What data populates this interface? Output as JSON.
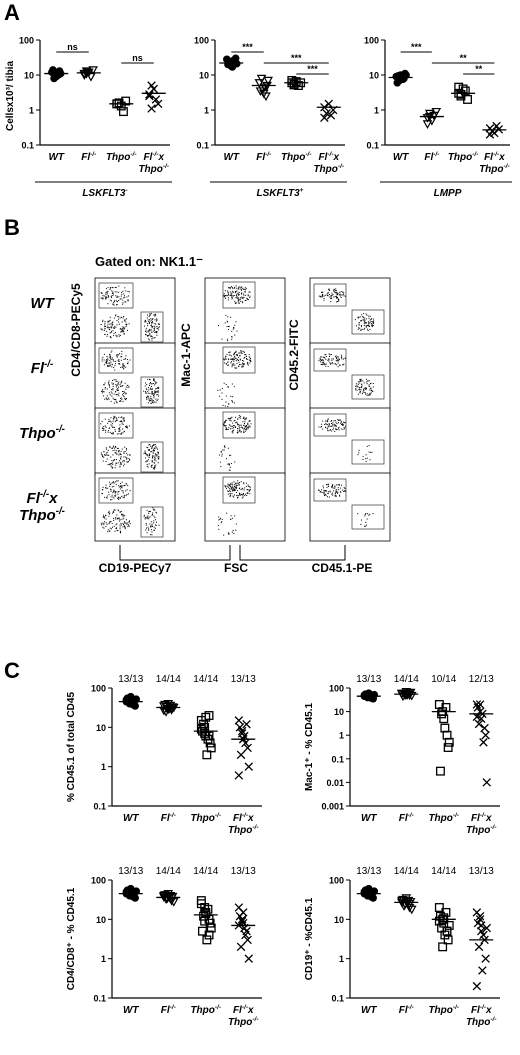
{
  "panels": {
    "A": "A",
    "B": "B",
    "C": "C"
  },
  "panel_a": {
    "ylabel": "Cellsx10³/ tibia",
    "yticks": [
      "100",
      "10",
      "1",
      "0.1"
    ],
    "charts": [
      {
        "group": "LSKFLT3⁻",
        "categories": [
          "WT",
          "Fl⁻/⁻",
          "Thpo⁻/⁻",
          "Fl⁻/⁻x Thpo⁻/⁻"
        ],
        "sig": [
          {
            "from": 0,
            "to": 1,
            "label": "ns"
          },
          {
            "from": 2,
            "to": 3,
            "label": "ns"
          }
        ]
      },
      {
        "group": "LSKFLT3⁺",
        "categories": [
          "WT",
          "Fl⁻/⁻",
          "Thpo⁻/⁻",
          "Fl⁻/⁻x Thpo⁻/⁻"
        ],
        "sig": [
          {
            "from": 0,
            "to": 1,
            "label": "***"
          },
          {
            "from": 1,
            "to": 3,
            "label": "***"
          },
          {
            "from": 2,
            "to": 3,
            "label": "***"
          }
        ]
      },
      {
        "group": "LMPP",
        "categories": [
          "WT",
          "Fl⁻/⁻",
          "Thpo⁻/⁻",
          "Fl⁻/⁻x Thpo⁻/⁻"
        ],
        "sig": [
          {
            "from": 0,
            "to": 1,
            "label": "***"
          },
          {
            "from": 1,
            "to": 3,
            "label": "**"
          },
          {
            "from": 2,
            "to": 3,
            "label": "**"
          }
        ]
      }
    ]
  },
  "panel_b": {
    "gate": "Gated on: NK1.1⁻",
    "rows": [
      "WT",
      "Fl⁻/⁻",
      "Thpo⁻/⁻",
      "Fl⁻/⁻x Thpo⁻/⁻"
    ],
    "ylabels": [
      "CD4/CD8-PECy5",
      "Mac-1-APC",
      "CD45.2-FITC"
    ],
    "xlabels": [
      "CD19-PECy7",
      "FSC",
      "CD45.1-PE"
    ]
  },
  "panel_c": {
    "categories": [
      "WT",
      "Fl⁻/⁻",
      "Thpo⁻/⁻",
      "Fl⁻/⁻x Thpo⁻/⁻"
    ],
    "charts": [
      {
        "ylabel": "% CD45.1 of total CD45",
        "yticks": [
          "100",
          "10",
          "1",
          "0.1"
        ],
        "counts": [
          "13/13",
          "14/14",
          "14/14",
          "13/13"
        ]
      },
      {
        "ylabel": "Mac-1⁺ - % CD45.1",
        "yticks": [
          "100",
          "10",
          "1",
          "0.1",
          "0.01",
          "0.001"
        ],
        "counts": [
          "13/13",
          "14/14",
          "10/14",
          "12/13"
        ]
      },
      {
        "ylabel": "CD4/CD8⁺ - % CD45.1",
        "yticks": [
          "100",
          "10",
          "1",
          "0.1"
        ],
        "counts": [
          "13/13",
          "14/14",
          "14/14",
          "13/13"
        ]
      },
      {
        "ylabel": "CD19⁺ - %CD45.1",
        "yticks": [
          "100",
          "10",
          "1",
          "0.1"
        ],
        "counts": [
          "13/13",
          "14/14",
          "14/14",
          "13/13"
        ]
      }
    ]
  },
  "chart_data": [
    {
      "type": "scatter",
      "title": "LSKFLT3⁻",
      "ylabel": "Cellsx10³/ tibia",
      "yscale": "log",
      "ylim": [
        0.1,
        100
      ],
      "categories": [
        "WT",
        "Fl⁻/⁻",
        "Thpo⁻/⁻",
        "Fl⁻/⁻x Thpo⁻/⁻"
      ],
      "markers": [
        "filled-circle",
        "open-triangle",
        "open-square",
        "x"
      ],
      "points": [
        [
          12,
          10,
          9,
          13,
          11,
          14,
          8,
          12,
          10
        ],
        [
          11,
          13,
          12,
          9,
          14,
          10,
          11,
          12
        ],
        [
          1.5,
          1.6,
          1.3,
          0.9,
          1.8,
          1.5
        ],
        [
          2.8,
          5,
          4,
          2,
          1.5,
          2.5,
          1.1
        ]
      ],
      "means": [
        11,
        11.5,
        1.5,
        3
      ]
    },
    {
      "type": "scatter",
      "title": "LSKFLT3⁺",
      "ylabel": "Cellsx10³/ tibia",
      "yscale": "log",
      "ylim": [
        0.1,
        100
      ],
      "categories": [
        "WT",
        "Fl⁻/⁻",
        "Thpo⁻/⁻",
        "Fl⁻/⁻x Thpo⁻/⁻"
      ],
      "markers": [
        "filled-circle",
        "open-triangle",
        "open-square",
        "x"
      ],
      "points": [
        [
          28,
          22,
          18,
          25,
          30,
          20,
          24,
          17,
          26,
          21
        ],
        [
          6,
          4,
          3,
          5,
          7,
          3.5,
          8,
          4.5,
          2.5
        ],
        [
          6,
          5.5,
          6.5,
          5,
          6,
          7,
          5.2
        ],
        [
          1.2,
          0.8,
          1.5,
          0.7,
          1.0,
          0.6
        ]
      ],
      "means": [
        22,
        5,
        6,
        1.2
      ]
    },
    {
      "type": "scatter",
      "title": "LMPP",
      "ylabel": "Cellsx10³/ tibia",
      "yscale": "log",
      "ylim": [
        0.1,
        100
      ],
      "categories": [
        "WT",
        "Fl⁻/⁻",
        "Thpo⁻/⁻",
        "Fl⁻/⁻x Thpo⁻/⁻"
      ],
      "markers": [
        "filled-circle",
        "open-triangle",
        "open-square",
        "x"
      ],
      "points": [
        [
          9,
          7,
          10,
          8,
          11,
          6,
          9.5,
          8.5,
          7.5,
          10
        ],
        [
          0.6,
          0.8,
          0.5,
          0.7,
          0.9,
          0.4,
          0.65
        ],
        [
          3,
          2.5,
          4,
          3.5,
          2,
          4.5,
          2.8
        ],
        [
          0.3,
          0.25,
          0.22,
          0.35,
          0.28,
          0.2
        ]
      ],
      "means": [
        8.5,
        0.65,
        3,
        0.27
      ]
    },
    {
      "type": "scatter",
      "title": "",
      "ylabel": "% CD45.1 of total CD45",
      "yscale": "log",
      "ylim": [
        0.1,
        100
      ],
      "categories": [
        "WT",
        "Fl⁻/⁻",
        "Thpo⁻/⁻",
        "Fl⁻/⁻x Thpo⁻/⁻"
      ],
      "markers": [
        "filled-circle",
        "open-triangle",
        "open-square",
        "x"
      ],
      "points": [
        [
          50,
          40,
          60,
          45,
          35,
          55,
          48,
          42,
          38,
          52,
          45,
          40,
          58
        ],
        [
          35,
          30,
          40,
          28,
          33,
          38,
          25,
          30,
          36,
          32,
          27,
          34,
          29,
          31
        ],
        [
          15,
          10,
          6,
          20,
          4,
          8,
          12,
          2,
          5,
          3,
          9,
          7,
          18,
          6
        ],
        [
          15,
          8,
          5,
          12,
          3,
          10,
          2,
          6,
          4,
          1,
          0.6,
          7,
          5
        ]
      ],
      "means": [
        45,
        32,
        8,
        5
      ]
    },
    {
      "type": "scatter",
      "title": "",
      "ylabel": "Mac-1⁺ - % CD45.1",
      "yscale": "log",
      "ylim": [
        0.001,
        100
      ],
      "categories": [
        "WT",
        "Fl⁻/⁻",
        "Thpo⁻/⁻",
        "Fl⁻/⁻x Thpo⁻/⁻"
      ],
      "markers": [
        "filled-circle",
        "open-triangle",
        "open-square",
        "x"
      ],
      "points": [
        [
          50,
          40,
          60,
          45,
          35,
          55,
          48,
          42,
          38,
          52,
          45,
          40,
          58
        ],
        [
          60,
          50,
          70,
          55,
          65,
          45,
          58,
          52,
          62,
          48,
          56,
          60,
          53,
          50
        ],
        [
          20,
          10,
          5,
          1,
          0.3,
          0.03,
          8,
          2,
          15,
          0.5
        ],
        [
          20,
          10,
          5,
          2,
          1,
          15,
          3,
          8,
          0.5,
          0.01,
          6,
          20
        ]
      ],
      "means": [
        45,
        55,
        10,
        8
      ]
    },
    {
      "type": "scatter",
      "title": "",
      "ylabel": "CD4/CD8⁺ - % CD45.1",
      "yscale": "log",
      "ylim": [
        0.1,
        100
      ],
      "categories": [
        "WT",
        "Fl⁻/⁻",
        "Thpo⁻/⁻",
        "Fl⁻/⁻x Thpo⁻/⁻"
      ],
      "markers": [
        "filled-circle",
        "open-triangle",
        "open-square",
        "x"
      ],
      "points": [
        [
          50,
          40,
          60,
          45,
          35,
          55,
          48,
          42,
          38,
          52,
          45,
          40,
          58
        ],
        [
          40,
          35,
          45,
          30,
          38,
          42,
          33,
          36,
          40,
          28,
          37,
          34,
          39,
          35
        ],
        [
          30,
          20,
          15,
          10,
          8,
          5,
          12,
          3,
          18,
          6,
          25,
          9,
          14,
          4
        ],
        [
          20,
          10,
          8,
          5,
          3,
          12,
          2,
          6,
          4,
          1,
          7,
          9,
          15
        ]
      ],
      "means": [
        45,
        36,
        13,
        7
      ]
    },
    {
      "type": "scatter",
      "title": "",
      "ylabel": "CD19⁺ - %CD45.1",
      "yscale": "log",
      "ylim": [
        0.1,
        100
      ],
      "categories": [
        "WT",
        "Fl⁻/⁻",
        "Thpo⁻/⁻",
        "Fl⁻/⁻x Thpo⁻/⁻"
      ],
      "markers": [
        "filled-circle",
        "open-triangle",
        "open-square",
        "x"
      ],
      "points": [
        [
          50,
          40,
          60,
          45,
          35,
          55,
          48,
          42,
          38,
          52,
          45,
          40,
          58
        ],
        [
          30,
          25,
          35,
          20,
          28,
          32,
          22,
          26,
          30,
          18,
          27,
          24,
          29,
          25
        ],
        [
          20,
          10,
          8,
          5,
          3,
          12,
          6,
          4,
          15,
          7,
          9,
          2,
          11,
          5
        ],
        [
          15,
          10,
          5,
          3,
          1,
          8,
          2,
          0.5,
          4,
          6,
          0.2,
          12,
          7
        ]
      ],
      "means": [
        45,
        27,
        10,
        3
      ]
    }
  ]
}
